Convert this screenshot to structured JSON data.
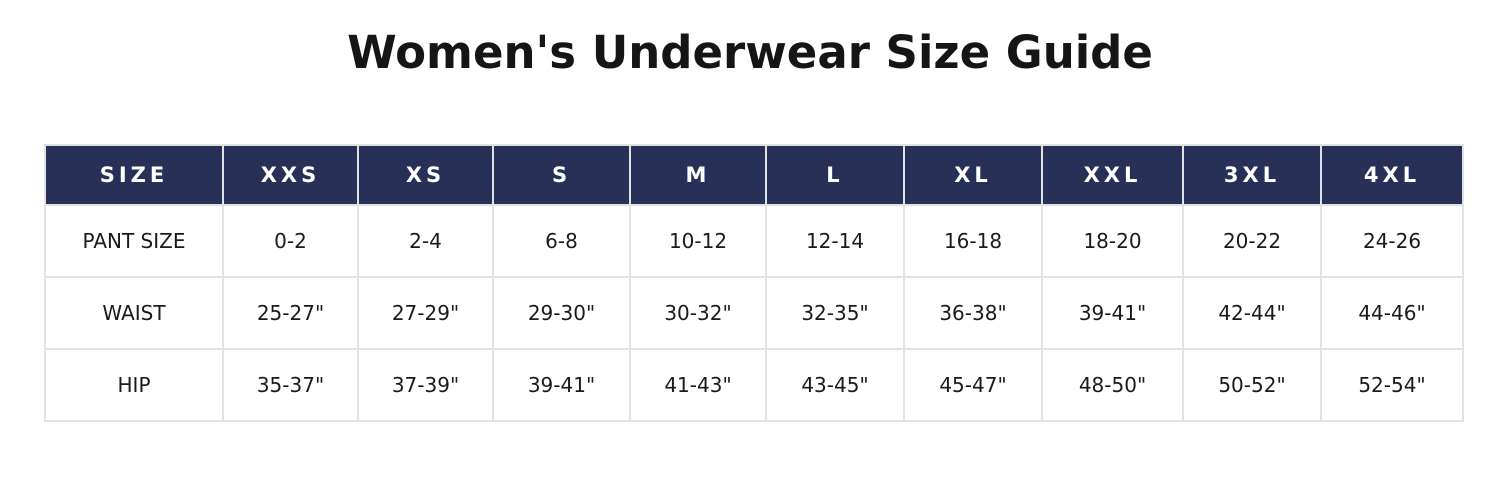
{
  "title": "Women's Underwear Size Guide",
  "table": {
    "headers": [
      "SIZE",
      "XXS",
      "XS",
      "S",
      "M",
      "L",
      "XL",
      "XXL",
      "3XL",
      "4XL"
    ],
    "rows": [
      [
        "PANT SIZE",
        "0-2",
        "2-4",
        "6-8",
        "10-12",
        "12-14",
        "16-18",
        "18-20",
        "20-22",
        "24-26"
      ],
      [
        "WAIST",
        "25-27\"",
        "27-29\"",
        "29-30\"",
        "30-32\"",
        "32-35\"",
        "36-38\"",
        "39-41\"",
        "42-44\"",
        "44-46\""
      ],
      [
        "HIP",
        "35-37\"",
        "37-39\"",
        "39-41\"",
        "41-43\"",
        "43-45\"",
        "45-47\"",
        "48-50\"",
        "50-52\"",
        "52-54\""
      ]
    ]
  },
  "colors": {
    "header_bg": "#283058",
    "header_text": "#ffffff",
    "border": "#e2e2e2"
  }
}
